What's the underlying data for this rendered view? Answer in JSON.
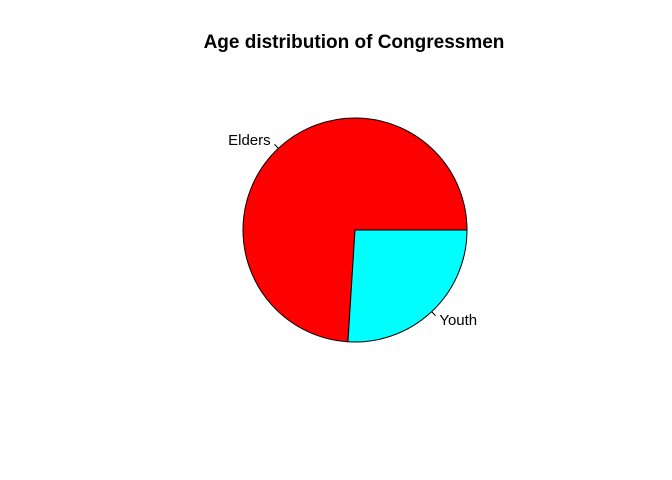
{
  "chart_data": {
    "type": "pie",
    "title": "Age distribution of Congressmen",
    "slices": [
      {
        "label": "Elders",
        "value": 74,
        "color": "#FF0000"
      },
      {
        "label": "Youth",
        "value": 26,
        "color": "#00FFFF"
      }
    ],
    "start": "3 o'clock",
    "direction": "counterclockwise",
    "legend": "none",
    "labels": "outside with leader lines"
  }
}
